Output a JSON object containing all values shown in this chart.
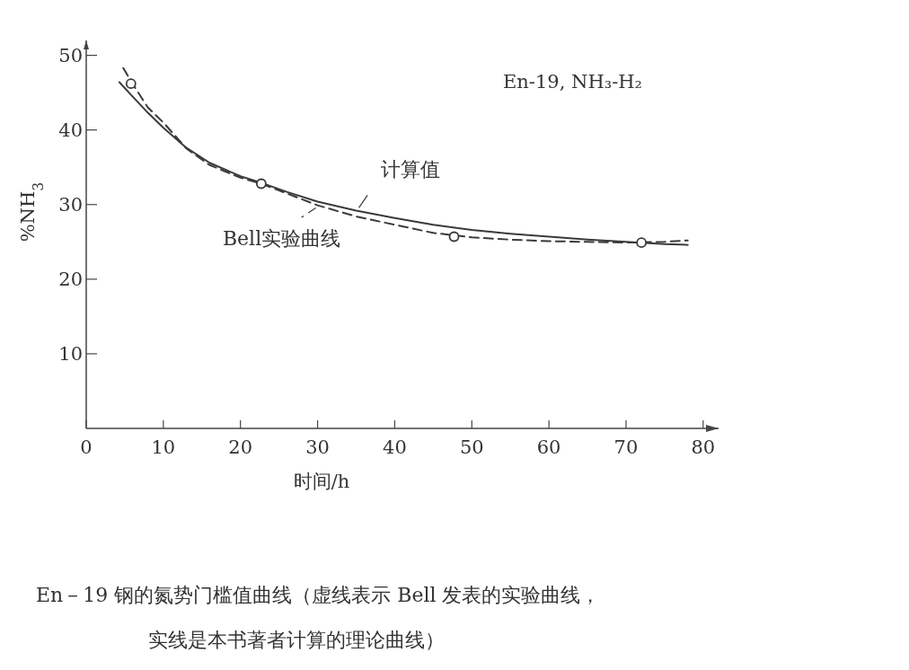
{
  "chart_data": {
    "type": "line",
    "ylabel": "%NH$_{3}$",
    "xlabel": "时间/h",
    "xlim": [
      0,
      82
    ],
    "xticks": [
      0,
      10,
      20,
      30,
      40,
      50,
      60,
      70,
      80
    ],
    "ylim": [
      0,
      52
    ],
    "yticks": [
      10,
      20,
      30,
      40,
      50
    ],
    "grid": false,
    "series": [
      {
        "name": "计算值",
        "line_style": "solid",
        "marker": "none",
        "color": "#3a3a3a",
        "x": [
          4.3,
          6,
          8,
          10,
          13,
          16,
          20,
          22.5,
          26,
          30,
          35,
          40,
          45,
          50,
          55,
          60,
          65,
          70,
          75,
          78
        ],
        "values": [
          46.4,
          44.5,
          42.3,
          40.3,
          37.6,
          35.6,
          33.8,
          33,
          31.7,
          30.4,
          29.2,
          28.2,
          27.3,
          26.6,
          26.1,
          25.7,
          25.3,
          25.0,
          24.7,
          24.6
        ]
      },
      {
        "name": "Bell实验曲线",
        "line_style": "dashed",
        "marker": "none",
        "color": "#3a3a3a",
        "x": [
          4.8,
          6,
          8,
          10,
          13,
          16,
          20,
          22.7,
          26,
          30,
          35,
          40,
          45,
          50,
          55,
          60,
          65,
          70,
          75,
          78
        ],
        "values": [
          48.3,
          46.2,
          43,
          41,
          37.5,
          35.3,
          33.6,
          32.8,
          31.5,
          29.9,
          28.4,
          27.3,
          26.2,
          25.6,
          25.3,
          25.1,
          25,
          24.9,
          25,
          25.2
        ]
      },
      {
        "type": "scatter",
        "marker": "circle",
        "color": "#3a3a3a",
        "x": [
          5.8,
          22.7,
          47.7,
          72
        ],
        "values": [
          46.2,
          32.8,
          25.7,
          24.9
        ]
      }
    ],
    "annotations": [
      "En-19, NH₃-H₂",
      "En－19 钢的氮势门槛值曲线（虚线表示 Bell 发表的实验曲线，",
      "实线是本书著者计算的理论曲线）"
    ]
  }
}
